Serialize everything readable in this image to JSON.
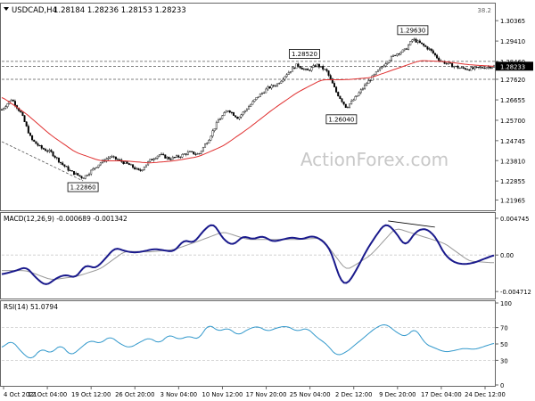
{
  "header": {
    "title_icon": "triangle-down-icon",
    "symbol": "USDCAD,H4",
    "ohlc": "1.28184 1.28236 1.28153 1.28233"
  },
  "watermark": "ActionForex.com",
  "colors": {
    "candles": "#000000",
    "ma": "#e03030",
    "macd_line": "#1a1a8c",
    "macd_signal": "#9a9a9a",
    "rsi": "#3399cc",
    "grid": "#cccccc",
    "dashed": "#555555",
    "price_tag_bg": "#000000"
  },
  "chart_data": [
    {
      "type": "candlestick",
      "panel": "price",
      "ylim": [
        1.2165,
        1.31
      ],
      "y_ticks": [
        "1.30365",
        "1.29410",
        "1.28460",
        "1.27620",
        "1.26655",
        "1.25700",
        "1.24745",
        "1.23810",
        "1.22855",
        "1.21965"
      ],
      "y_tick_values": [
        1.30365,
        1.2941,
        1.2846,
        1.2762,
        1.26655,
        1.257,
        1.24745,
        1.2381,
        1.22855,
        1.21965
      ],
      "corner_label": "38.2",
      "horizontal_levels": [
        1.2846,
        1.2823,
        1.2762
      ],
      "current_price_label": "1.28233",
      "current_price": 1.28233,
      "annotations": [
        {
          "label": "1.28520",
          "x": 0.615,
          "value": 1.2852
        },
        {
          "label": "1.29630",
          "x": 0.835,
          "value": 1.2963
        },
        {
          "label": "1.26040",
          "x": 0.69,
          "value": 1.2604
        },
        {
          "label": "1.22860",
          "x": 0.165,
          "value": 1.2286
        }
      ],
      "trendline": {
        "from": [
          0.0,
          1.247
        ],
        "to": [
          0.165,
          1.2286
        ]
      },
      "close_path": [
        [
          0.0,
          1.262
        ],
        [
          0.02,
          1.267
        ],
        [
          0.04,
          1.26
        ],
        [
          0.06,
          1.248
        ],
        [
          0.08,
          1.244
        ],
        [
          0.1,
          1.242
        ],
        [
          0.12,
          1.237
        ],
        [
          0.14,
          1.233
        ],
        [
          0.165,
          1.23
        ],
        [
          0.18,
          1.233
        ],
        [
          0.2,
          1.237
        ],
        [
          0.22,
          1.24
        ],
        [
          0.24,
          1.238
        ],
        [
          0.26,
          1.236
        ],
        [
          0.28,
          1.233
        ],
        [
          0.3,
          1.238
        ],
        [
          0.32,
          1.241
        ],
        [
          0.34,
          1.239
        ],
        [
          0.36,
          1.24
        ],
        [
          0.38,
          1.242
        ],
        [
          0.4,
          1.241
        ],
        [
          0.42,
          1.248
        ],
        [
          0.44,
          1.257
        ],
        [
          0.46,
          1.262
        ],
        [
          0.48,
          1.258
        ],
        [
          0.5,
          1.263
        ],
        [
          0.52,
          1.268
        ],
        [
          0.54,
          1.272
        ],
        [
          0.56,
          1.274
        ],
        [
          0.58,
          1.279
        ],
        [
          0.6,
          1.283
        ],
        [
          0.62,
          1.28
        ],
        [
          0.64,
          1.283
        ],
        [
          0.66,
          1.28
        ],
        [
          0.68,
          1.27
        ],
        [
          0.7,
          1.263
        ],
        [
          0.72,
          1.268
        ],
        [
          0.74,
          1.274
        ],
        [
          0.76,
          1.279
        ],
        [
          0.78,
          1.284
        ],
        [
          0.8,
          1.288
        ],
        [
          0.82,
          1.29
        ],
        [
          0.835,
          1.295
        ],
        [
          0.85,
          1.293
        ],
        [
          0.87,
          1.29
        ],
        [
          0.89,
          1.285
        ],
        [
          0.91,
          1.283
        ],
        [
          0.93,
          1.2815
        ],
        [
          0.95,
          1.281
        ],
        [
          0.97,
          1.2815
        ],
        [
          1.0,
          1.2823
        ]
      ],
      "ma_path": [
        [
          0.0,
          1.268
        ],
        [
          0.05,
          1.26
        ],
        [
          0.1,
          1.25
        ],
        [
          0.15,
          1.242
        ],
        [
          0.2,
          1.238
        ],
        [
          0.25,
          1.238
        ],
        [
          0.3,
          1.237
        ],
        [
          0.35,
          1.238
        ],
        [
          0.4,
          1.24
        ],
        [
          0.45,
          1.245
        ],
        [
          0.5,
          1.253
        ],
        [
          0.55,
          1.262
        ],
        [
          0.6,
          1.27
        ],
        [
          0.65,
          1.276
        ],
        [
          0.7,
          1.276
        ],
        [
          0.75,
          1.277
        ],
        [
          0.8,
          1.281
        ],
        [
          0.85,
          1.285
        ],
        [
          0.9,
          1.2845
        ],
        [
          0.95,
          1.283
        ],
        [
          1.0,
          1.2823
        ]
      ]
    },
    {
      "type": "line",
      "panel": "macd",
      "title": "MACD(12,26,9) -0.000689 -0.001342",
      "ylim": [
        -0.0055,
        0.0052
      ],
      "y_ticks": [
        "0.004745",
        "0.00",
        "-0.004712"
      ],
      "y_tick_values": [
        0.004745,
        0.0,
        -0.004712
      ],
      "series": [
        {
          "name": "MACD",
          "points": [
            [
              0.0,
              -0.0025
            ],
            [
              0.03,
              -0.002
            ],
            [
              0.05,
              -0.0015
            ],
            [
              0.07,
              -0.003
            ],
            [
              0.09,
              -0.004
            ],
            [
              0.11,
              -0.003
            ],
            [
              0.13,
              -0.0025
            ],
            [
              0.15,
              -0.003
            ],
            [
              0.17,
              -0.0012
            ],
            [
              0.19,
              -0.0018
            ],
            [
              0.21,
              -0.0005
            ],
            [
              0.23,
              0.001
            ],
            [
              0.25,
              0.0005
            ],
            [
              0.27,
              0.0003
            ],
            [
              0.29,
              0.0005
            ],
            [
              0.31,
              0.0008
            ],
            [
              0.33,
              0.0006
            ],
            [
              0.35,
              0.0004
            ],
            [
              0.37,
              0.002
            ],
            [
              0.39,
              0.0015
            ],
            [
              0.41,
              0.0032
            ],
            [
              0.43,
              0.0042
            ],
            [
              0.45,
              0.002
            ],
            [
              0.47,
              0.0012
            ],
            [
              0.49,
              0.0025
            ],
            [
              0.51,
              0.002
            ],
            [
              0.53,
              0.0025
            ],
            [
              0.55,
              0.0017
            ],
            [
              0.57,
              0.002
            ],
            [
              0.59,
              0.0023
            ],
            [
              0.61,
              0.002
            ],
            [
              0.63,
              0.0025
            ],
            [
              0.65,
              0.002
            ],
            [
              0.67,
              0.0005
            ],
            [
              0.685,
              -0.003
            ],
            [
              0.7,
              -0.004
            ],
            [
              0.72,
              -0.002
            ],
            [
              0.74,
              0.0005
            ],
            [
              0.76,
              0.0025
            ],
            [
              0.78,
              0.0042
            ],
            [
              0.8,
              0.003
            ],
            [
              0.82,
              0.001
            ],
            [
              0.84,
              0.003
            ],
            [
              0.86,
              0.0035
            ],
            [
              0.88,
              0.0025
            ],
            [
              0.9,
              0.0
            ],
            [
              0.92,
              -0.001
            ],
            [
              0.94,
              -0.0012
            ],
            [
              0.96,
              -0.001
            ],
            [
              1.0,
              0.0
            ]
          ]
        },
        {
          "name": "Signal",
          "points": [
            [
              0.0,
              -0.002
            ],
            [
              0.05,
              -0.002
            ],
            [
              0.1,
              -0.0032
            ],
            [
              0.15,
              -0.0028
            ],
            [
              0.2,
              -0.0018
            ],
            [
              0.25,
              0.0005
            ],
            [
              0.3,
              0.0004
            ],
            [
              0.35,
              0.0007
            ],
            [
              0.4,
              0.0018
            ],
            [
              0.45,
              0.003
            ],
            [
              0.5,
              0.002
            ],
            [
              0.55,
              0.002
            ],
            [
              0.6,
              0.002
            ],
            [
              0.65,
              0.0022
            ],
            [
              0.7,
              -0.002
            ],
            [
              0.75,
              0.0
            ],
            [
              0.8,
              0.0035
            ],
            [
              0.85,
              0.0025
            ],
            [
              0.9,
              0.0015
            ],
            [
              0.95,
              -0.0008
            ],
            [
              1.0,
              -0.001
            ]
          ]
        }
      ],
      "divergence_line": {
        "from": [
          0.785,
          0.0044
        ],
        "to": [
          0.88,
          0.0036
        ]
      }
    },
    {
      "type": "line",
      "panel": "rsi",
      "title": "RSI(14) 51.0794",
      "ylim": [
        0,
        100
      ],
      "y_ticks": [
        "100",
        "70",
        "50",
        "30",
        "0"
      ],
      "y_tick_values": [
        100,
        70,
        50,
        30,
        0
      ],
      "levels": [
        70,
        30
      ],
      "series": [
        {
          "name": "RSI",
          "points": [
            [
              0.0,
              45
            ],
            [
              0.02,
              55
            ],
            [
              0.04,
              40
            ],
            [
              0.06,
              30
            ],
            [
              0.08,
              45
            ],
            [
              0.1,
              38
            ],
            [
              0.12,
              50
            ],
            [
              0.14,
              35
            ],
            [
              0.16,
              45
            ],
            [
              0.18,
              55
            ],
            [
              0.2,
              50
            ],
            [
              0.22,
              60
            ],
            [
              0.24,
              50
            ],
            [
              0.26,
              45
            ],
            [
              0.28,
              52
            ],
            [
              0.3,
              58
            ],
            [
              0.32,
              50
            ],
            [
              0.34,
              62
            ],
            [
              0.36,
              55
            ],
            [
              0.38,
              60
            ],
            [
              0.4,
              55
            ],
            [
              0.42,
              75
            ],
            [
              0.44,
              65
            ],
            [
              0.46,
              70
            ],
            [
              0.48,
              60
            ],
            [
              0.5,
              68
            ],
            [
              0.52,
              72
            ],
            [
              0.54,
              65
            ],
            [
              0.56,
              70
            ],
            [
              0.58,
              72
            ],
            [
              0.6,
              65
            ],
            [
              0.62,
              70
            ],
            [
              0.64,
              58
            ],
            [
              0.66,
              50
            ],
            [
              0.68,
              35
            ],
            [
              0.7,
              40
            ],
            [
              0.72,
              50
            ],
            [
              0.74,
              60
            ],
            [
              0.76,
              70
            ],
            [
              0.78,
              75
            ],
            [
              0.8,
              65
            ],
            [
              0.82,
              58
            ],
            [
              0.84,
              70
            ],
            [
              0.86,
              50
            ],
            [
              0.88,
              45
            ],
            [
              0.9,
              40
            ],
            [
              0.92,
              42
            ],
            [
              0.94,
              45
            ],
            [
              0.96,
              43
            ],
            [
              1.0,
              51
            ]
          ]
        }
      ]
    }
  ],
  "x_axis": {
    "labels": [
      "4 Oct 2021",
      "12 Oct 04:00",
      "19 Oct 12:00",
      "26 Oct 20:00",
      "3 Nov 04:00",
      "10 Nov 12:00",
      "17 Nov 20:00",
      "25 Nov 04:00",
      "2 Dec 12:00",
      "9 Dec 20:00",
      "17 Dec 04:00",
      "24 Dec 12:00"
    ]
  }
}
